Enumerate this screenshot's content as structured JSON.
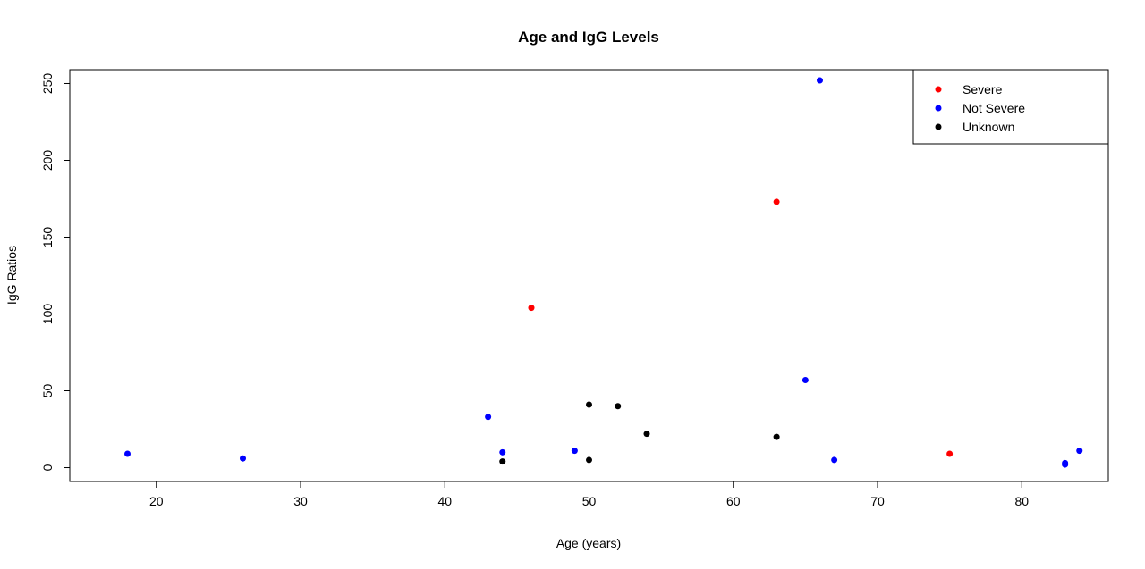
{
  "chart_data": {
    "type": "scatter",
    "title": "Age and IgG Levels",
    "xlabel": "Age (years)",
    "ylabel": "IgG Ratios",
    "xlim": [
      14,
      86
    ],
    "ylim": [
      -9,
      259
    ],
    "xticks": [
      20,
      30,
      40,
      50,
      60,
      70,
      80
    ],
    "yticks": [
      0,
      50,
      100,
      150,
      200,
      250
    ],
    "grid": false,
    "legend_position": "top-right",
    "series": [
      {
        "name": "Severe",
        "color": "#ff0000",
        "points": [
          [
            46,
            104
          ],
          [
            63,
            173
          ],
          [
            75,
            9
          ]
        ]
      },
      {
        "name": "Not Severe",
        "color": "#0000ff",
        "points": [
          [
            18,
            9
          ],
          [
            26,
            6
          ],
          [
            43,
            33
          ],
          [
            44,
            10
          ],
          [
            49,
            11
          ],
          [
            65,
            57
          ],
          [
            66,
            252
          ],
          [
            67,
            5
          ],
          [
            83,
            2
          ],
          [
            83,
            3
          ],
          [
            84,
            11
          ]
        ]
      },
      {
        "name": "Unknown",
        "color": "#000000",
        "points": [
          [
            44,
            4
          ],
          [
            50,
            41
          ],
          [
            50,
            5
          ],
          [
            52,
            40
          ],
          [
            54,
            22
          ],
          [
            63,
            20
          ]
        ]
      }
    ]
  }
}
